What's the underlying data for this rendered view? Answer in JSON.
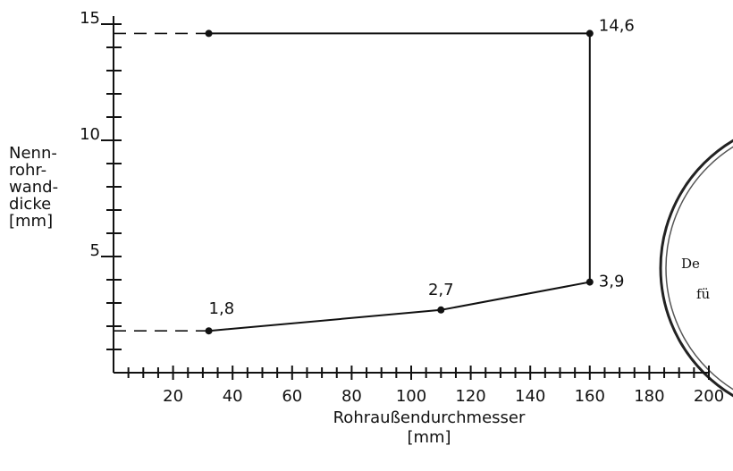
{
  "chart_data": {
    "type": "line",
    "xlabel": [
      "Rohraußendurchmesser",
      "[mm]"
    ],
    "ylabel": [
      "Nenn-",
      "rohr-",
      "wand-",
      "dicke",
      "[mm]"
    ],
    "xlim": [
      0,
      200
    ],
    "ylim": [
      0,
      15
    ],
    "xticks": [
      20,
      40,
      60,
      80,
      100,
      120,
      140,
      160,
      180,
      200
    ],
    "yticks": [
      5,
      10,
      15
    ],
    "xminorticks": [
      5,
      10,
      15,
      25,
      30,
      35,
      45,
      50,
      55,
      65,
      70,
      75,
      85,
      90,
      95,
      105,
      110,
      115,
      125,
      130,
      135,
      145,
      150,
      155,
      165,
      170,
      175,
      185,
      190,
      195
    ],
    "yminorticks": [
      1,
      2,
      3,
      4,
      6,
      7,
      8,
      9,
      11,
      12,
      13,
      14
    ],
    "series": [
      {
        "color": "#111111",
        "x": [
          32,
          160,
          160,
          110,
          32
        ],
        "values": [
          14.6,
          14.6,
          3.9,
          2.7,
          1.8
        ],
        "value_labels": [
          null,
          "14,6",
          "3,9",
          "2,7",
          "1,8"
        ]
      }
    ],
    "stamp_text": [
      "De",
      "fü"
    ]
  }
}
